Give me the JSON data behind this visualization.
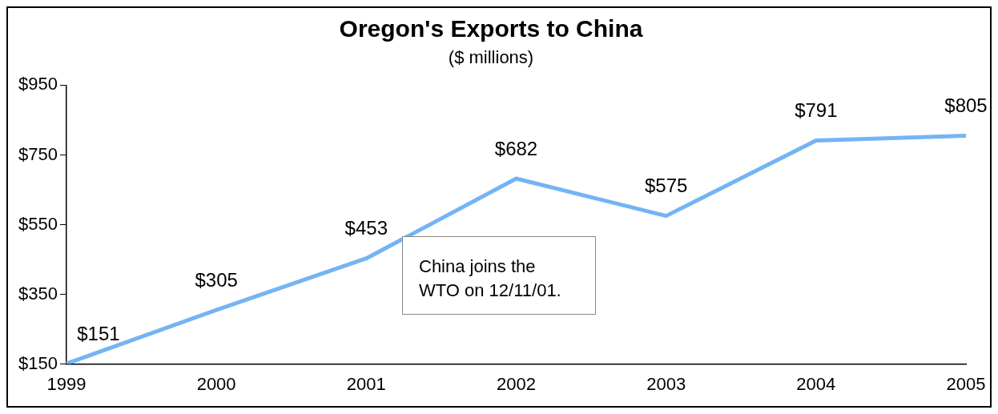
{
  "chart_data": {
    "type": "line",
    "title": "Oregon's Exports to China",
    "subtitle": "($ millions)",
    "categories": [
      "1999",
      "2000",
      "2001",
      "2002",
      "2003",
      "2004",
      "2005"
    ],
    "series": [
      {
        "color": "#74b4f4",
        "values": [
          151,
          305,
          453,
          682,
          575,
          791,
          805
        ],
        "value_labels": [
          "$151",
          "$305",
          "$453",
          "$682",
          "$575",
          "$791",
          "$805"
        ]
      }
    ],
    "ylim": [
      150,
      950
    ],
    "yticks": [
      {
        "value": 150,
        "label": "$150"
      },
      {
        "value": 350,
        "label": "$350"
      },
      {
        "value": 550,
        "label": "$550"
      },
      {
        "value": 750,
        "label": "$750"
      },
      {
        "value": 950,
        "label": "$950"
      }
    ],
    "annotations": [
      "China joins the WTO on 12/11/01."
    ],
    "grid": false,
    "legend": false,
    "marker": "none",
    "line_style": "solid"
  }
}
